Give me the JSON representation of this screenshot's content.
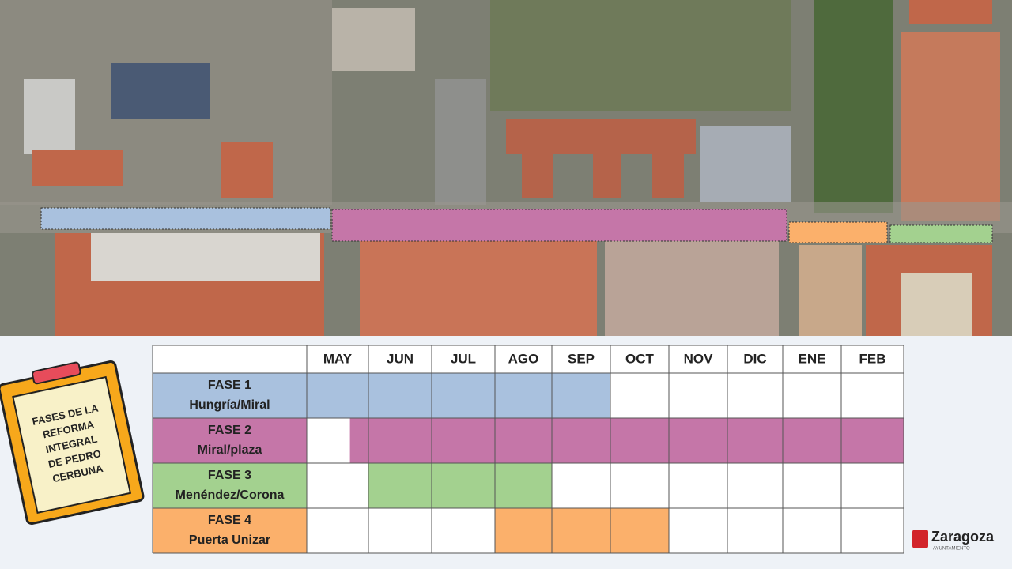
{
  "months": [
    "MAY",
    "JUN",
    "JUL",
    "AGO",
    "SEP",
    "OCT",
    "NOV",
    "DIC",
    "ENE",
    "FEB"
  ],
  "phases": [
    {
      "title": "FASE 1",
      "place": "Hungría/Miral",
      "color": "#a9c1de",
      "fills": [
        1,
        1,
        1,
        1,
        1,
        0,
        0,
        0,
        0,
        0
      ]
    },
    {
      "title": "FASE 2",
      "place": "Miral/plaza",
      "color": "#c576a8",
      "fills": [
        0.3,
        1,
        1,
        1,
        1,
        1,
        1,
        1,
        1,
        1
      ]
    },
    {
      "title": "FASE 3",
      "place": "Menéndez/Corona",
      "color": "#a3d18f",
      "fills": [
        0,
        1,
        1,
        1,
        0,
        0,
        0,
        0,
        0,
        0
      ]
    },
    {
      "title": "FASE 4",
      "place": "Puerta Unizar",
      "color": "#fbb06b",
      "fills": [
        0,
        0,
        0,
        1,
        1,
        1,
        0,
        0,
        0,
        0
      ]
    }
  ],
  "clipboard": [
    "FASES DE LA",
    "REFORMA",
    "INTEGRAL",
    "DE PEDRO",
    "CERBUNA"
  ],
  "logo": {
    "name": "Zaragoza",
    "sub": "AYUNTAMIENTO"
  }
}
